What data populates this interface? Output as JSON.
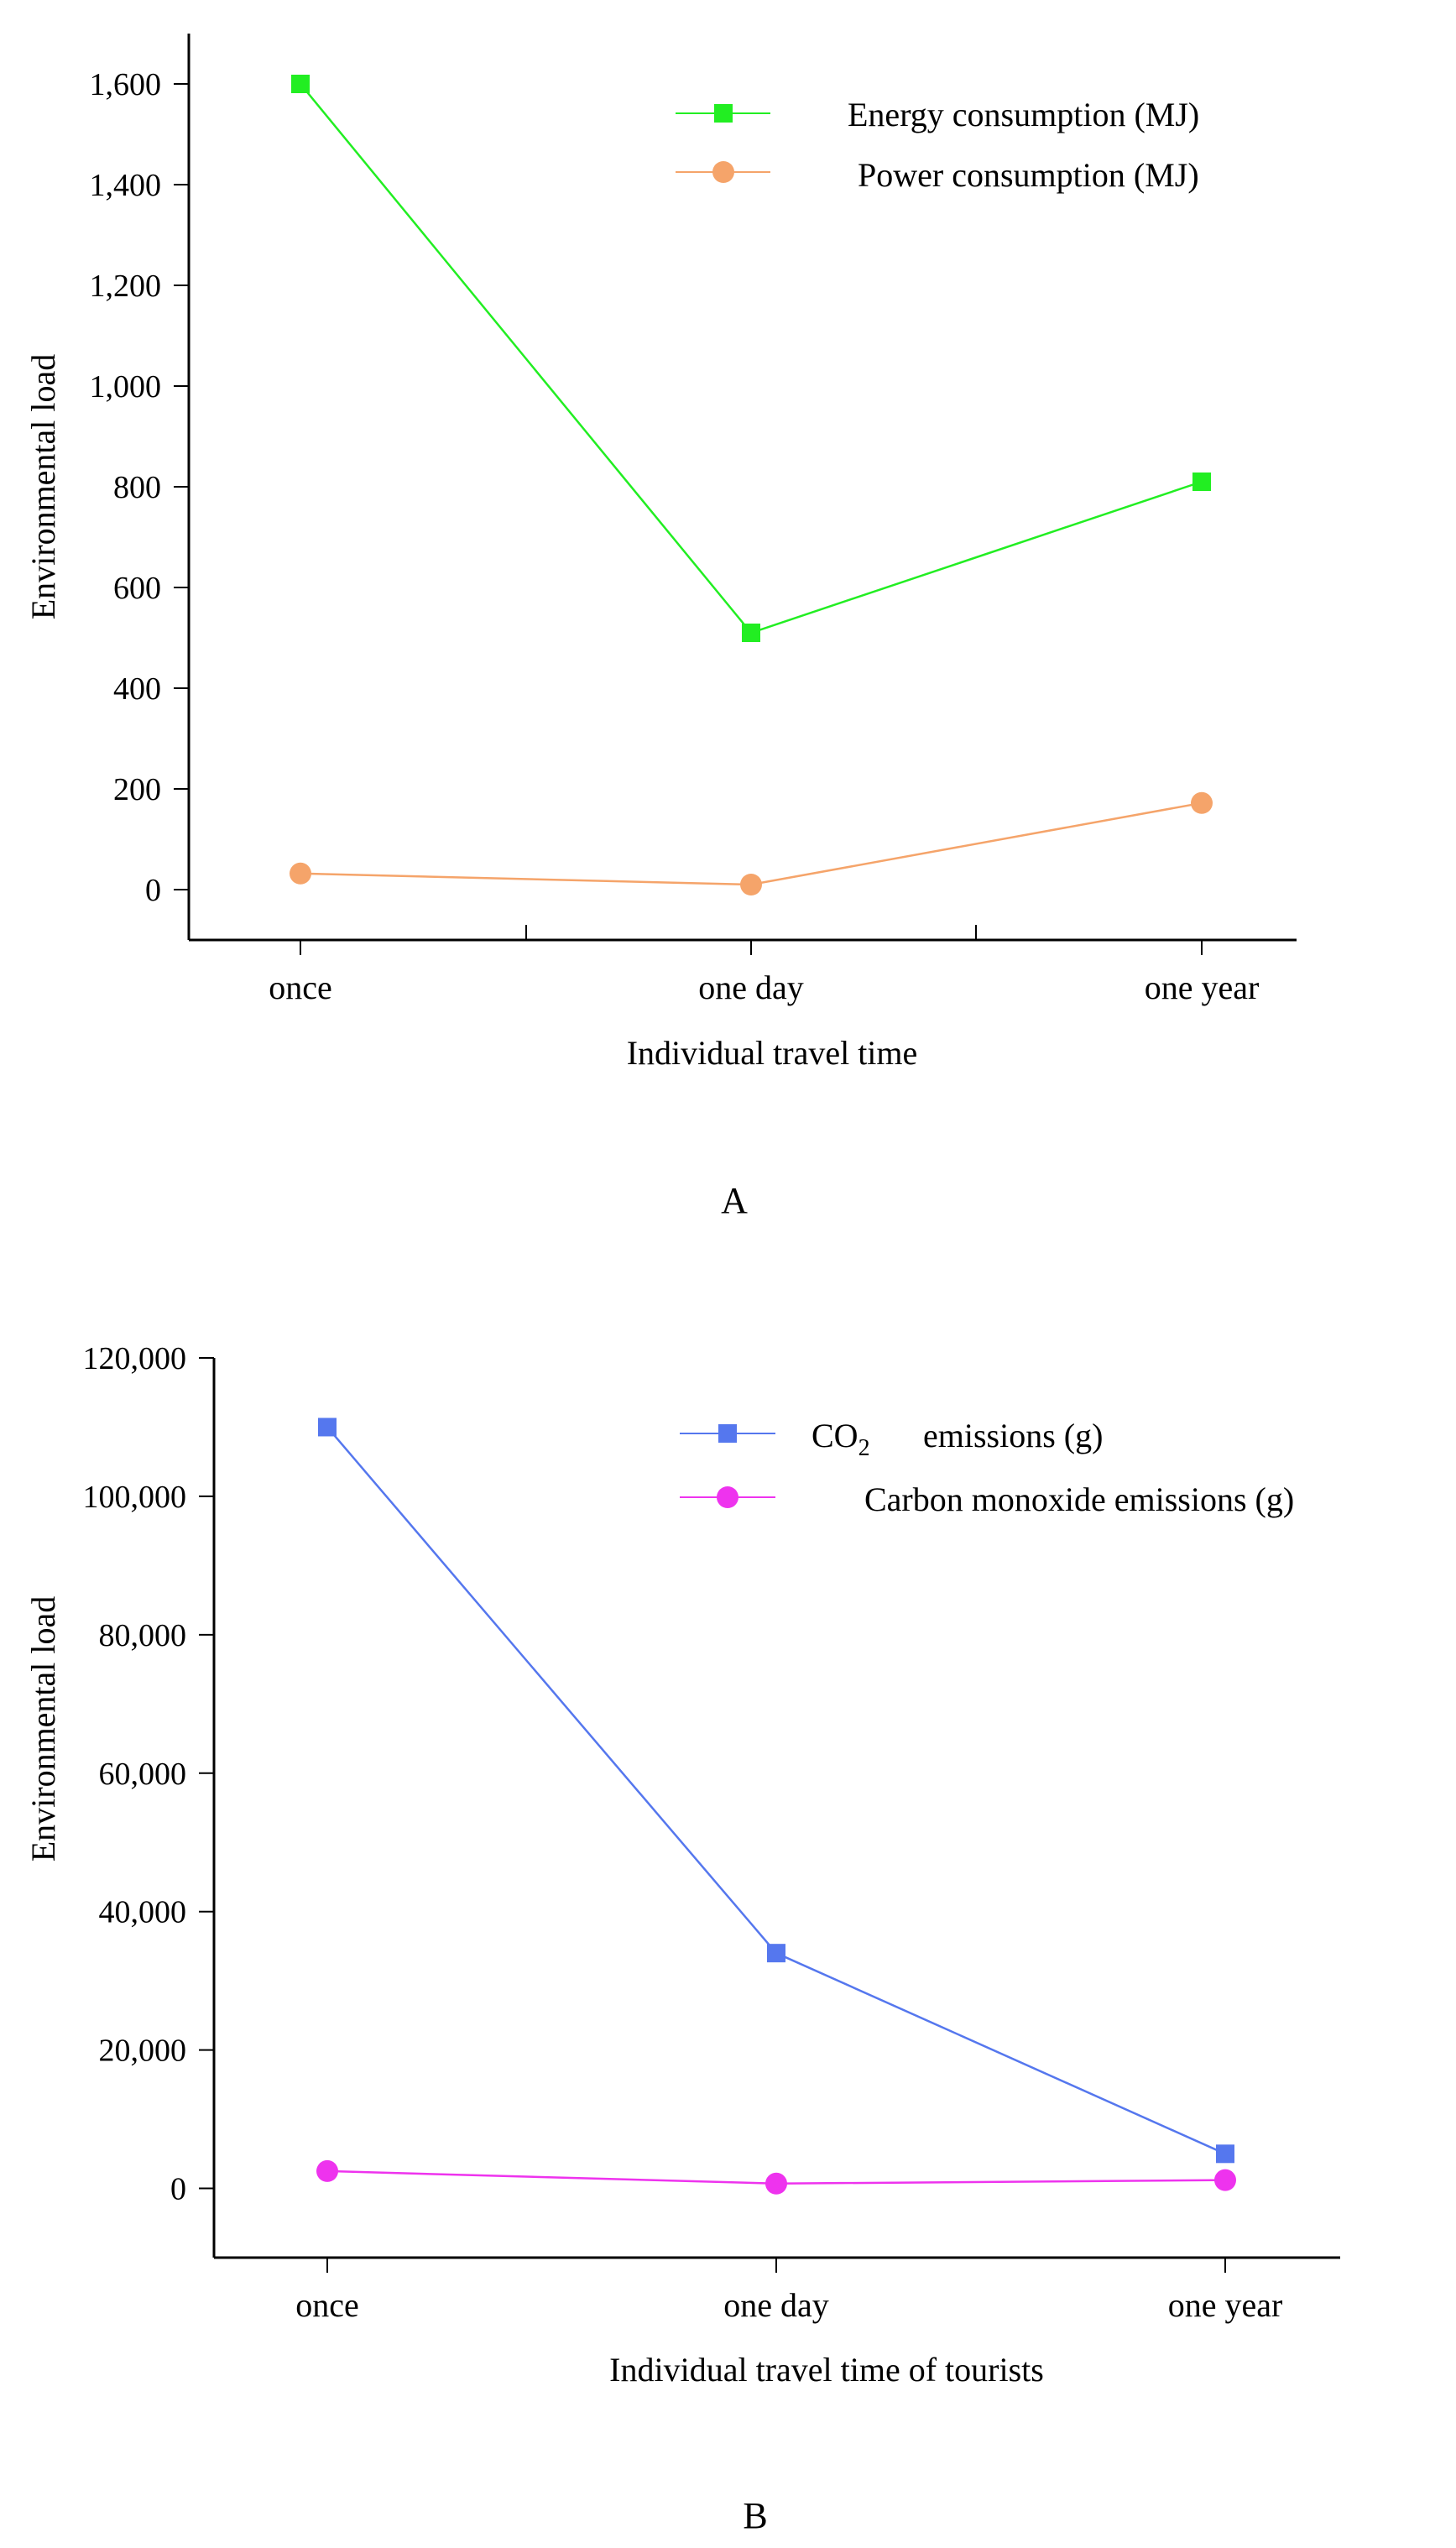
{
  "chart_data": [
    {
      "type": "line",
      "panel_label": "A",
      "title": "",
      "xlabel": "Individual travel time",
      "ylabel": "Environmental load",
      "categories": [
        "once",
        "one day",
        "one year"
      ],
      "ylim": [
        -100,
        1700
      ],
      "yticks": [
        0,
        200,
        400,
        600,
        800,
        1000,
        1200,
        1400,
        1600
      ],
      "ytick_labels": [
        "0",
        "200",
        "400",
        "600",
        "800",
        "1,000",
        "1,200",
        "1,400",
        "1,600"
      ],
      "grid": false,
      "legend_position": "top-right",
      "series": [
        {
          "name": "Energy consumption (MJ)",
          "values": [
            1600,
            510,
            810
          ],
          "color": "#22ee22",
          "marker": "square"
        },
        {
          "name": "Power consumption (MJ)",
          "values": [
            32,
            10,
            172
          ],
          "color": "#f5a46a",
          "marker": "circle"
        }
      ]
    },
    {
      "type": "line",
      "panel_label": "B",
      "title": "",
      "xlabel": "Individual travel time of tourists",
      "ylabel": "Environmental load",
      "categories": [
        "once",
        "one day",
        "one year"
      ],
      "ylim": [
        -10000,
        120000
      ],
      "yticks": [
        0,
        20000,
        40000,
        60000,
        80000,
        100000,
        120000
      ],
      "ytick_labels": [
        "0",
        "20,000",
        "40,000",
        "60,000",
        "80,000",
        "100,000",
        "120,000"
      ],
      "grid": false,
      "legend_position": "top-right",
      "series": [
        {
          "name_main": "CO",
          "name_sub": "2",
          "name_rest": "emissions (g)",
          "values": [
            110000,
            34000,
            5000
          ],
          "color": "#5577ee",
          "marker": "square"
        },
        {
          "name": "Carbon monoxide emissions (g)",
          "values": [
            2500,
            700,
            1200
          ],
          "color": "#ee33ee",
          "marker": "circle"
        }
      ]
    }
  ]
}
